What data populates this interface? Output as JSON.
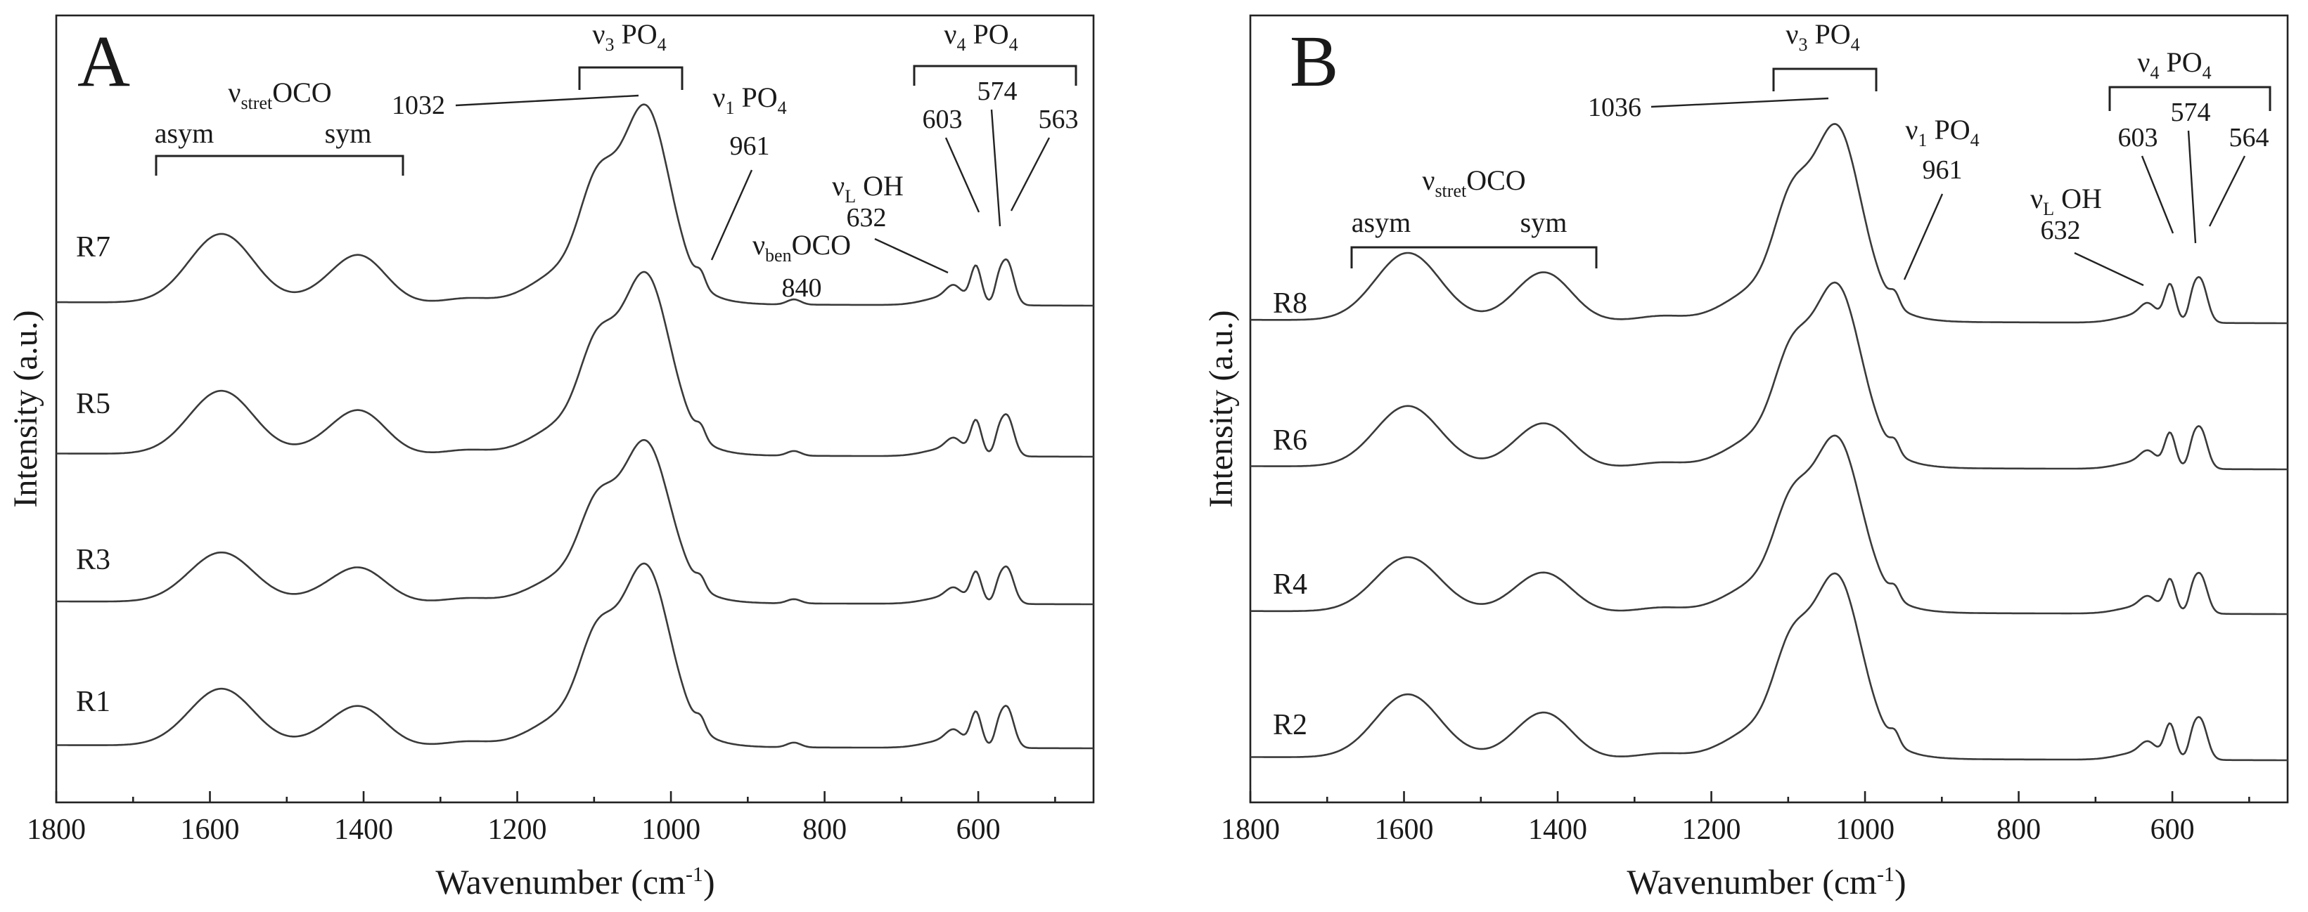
{
  "chart_data": [
    {
      "type": "line",
      "panel_label": "A",
      "xlabel": "Wavenumber (cm",
      "xlabel_sup": "-1",
      "xlabel_tail": ")",
      "ylabel": "Intensity (a.u.)",
      "xlim": [
        1800,
        450
      ],
      "xticks": [
        1800,
        1600,
        1400,
        1200,
        1000,
        800,
        600
      ],
      "grid": false,
      "series": [
        {
          "name": "R7",
          "intensity_scale": 1.0
        },
        {
          "name": "R5",
          "intensity_scale": 1.0
        },
        {
          "name": "R3",
          "intensity_scale": 0.88
        },
        {
          "name": "R1",
          "intensity_scale": 0.9
        }
      ],
      "peaks": [
        {
          "key": "asym_co",
          "position": 1585
        },
        {
          "key": "sym_co",
          "position": 1405
        },
        {
          "key": "v3_main",
          "position": 1032
        },
        {
          "key": "v3_shoulder",
          "position": 1097
        },
        {
          "key": "v1",
          "position": 961
        },
        {
          "key": "ben_oco",
          "position": 840
        },
        {
          "key": "vL_oh",
          "position": 632
        },
        {
          "key": "v4_603",
          "position": 603
        },
        {
          "key": "v4_574",
          "position": 574
        },
        {
          "key": "v4_563",
          "position": 563
        }
      ],
      "annotations": {
        "stret_label": {
          "main": "ν",
          "sub": "stret",
          "tail": "OCO"
        },
        "asym": "asym",
        "sym": "sym",
        "v3_label": {
          "main": "ν",
          "sub": "3",
          "tail": " PO",
          "sub2": "4"
        },
        "v3_peak": "1032",
        "v1_label": {
          "main": "ν",
          "sub": "1",
          "tail": " PO",
          "sub2": "4"
        },
        "v1_peak": "961",
        "ben_label": {
          "main": "ν",
          "sub": "ben",
          "tail": "OCO"
        },
        "ben_peak": "840",
        "vl_label": {
          "main": "ν",
          "sub": "L",
          "tail": " OH"
        },
        "vl_peak": "632",
        "v4_label": {
          "main": "ν",
          "sub": "4",
          "tail": " PO",
          "sub2": "4"
        },
        "v4_peaks": [
          "603",
          "574",
          "563"
        ]
      }
    },
    {
      "type": "line",
      "panel_label": "B",
      "xlabel": "Wavenumber (cm",
      "xlabel_sup": "-1",
      "xlabel_tail": ")",
      "ylabel": "Intensity (a.u.)",
      "xlim": [
        1800,
        450
      ],
      "xticks": [
        1800,
        1600,
        1400,
        1200,
        1000,
        800,
        600
      ],
      "grid": false,
      "series": [
        {
          "name": "R8",
          "intensity_scale": 1.0
        },
        {
          "name": "R6",
          "intensity_scale": 0.96
        },
        {
          "name": "R4",
          "intensity_scale": 0.9
        },
        {
          "name": "R2",
          "intensity_scale": 1.0
        }
      ],
      "peaks": [
        {
          "key": "asym_co",
          "position": 1595
        },
        {
          "key": "sym_co",
          "position": 1415
        },
        {
          "key": "v3_main",
          "position": 1036
        },
        {
          "key": "v3_shoulder",
          "position": 1097
        },
        {
          "key": "v1",
          "position": 961
        },
        {
          "key": "vL_oh",
          "position": 632
        },
        {
          "key": "v4_603",
          "position": 603
        },
        {
          "key": "v4_574",
          "position": 574
        },
        {
          "key": "v4_564",
          "position": 564
        }
      ],
      "annotations": {
        "stret_label": {
          "main": "ν",
          "sub": "stret",
          "tail": "OCO"
        },
        "asym": "asym",
        "sym": "sym",
        "v3_label": {
          "main": "ν",
          "sub": "3",
          "tail": " PO",
          "sub2": "4"
        },
        "v3_peak": "1036",
        "v1_label": {
          "main": "ν",
          "sub": "1",
          "tail": " PO",
          "sub2": "4"
        },
        "v1_peak": "961",
        "vl_label": {
          "main": "ν",
          "sub": "L",
          "tail": " OH"
        },
        "vl_peak": "632",
        "v4_label": {
          "main": "ν",
          "sub": "4",
          "tail": " PO",
          "sub2": "4"
        },
        "v4_peaks": [
          "603",
          "574",
          "564"
        ]
      }
    }
  ]
}
